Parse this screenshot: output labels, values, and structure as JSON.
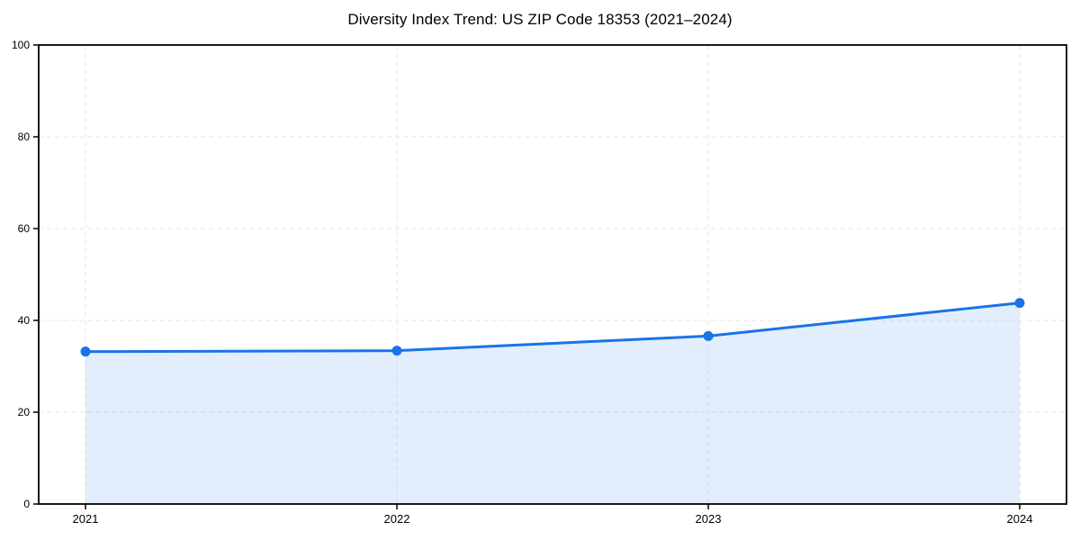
{
  "page": {
    "background": "#ffffff"
  },
  "chart_data": {
    "type": "line",
    "title": "Diversity Index Trend: US ZIP Code 18353 (2021–2024)",
    "x": [
      2021,
      2022,
      2023,
      2024
    ],
    "series": [
      {
        "name": "Diversity Index",
        "values": [
          33.2,
          33.4,
          36.6,
          43.8
        ]
      }
    ],
    "xlabel": "",
    "ylabel": "",
    "xticks": [
      2021,
      2022,
      2023,
      2024
    ],
    "yticks": [
      0,
      20,
      40,
      60,
      80,
      100
    ],
    "ylim": [
      0,
      100
    ],
    "xlim_pad_years": 0.15,
    "grid": true,
    "grid_style": "dashed",
    "legend_position": "none",
    "area_fill": true,
    "markers": true,
    "colors": {
      "line": "#1a73e8",
      "marker": "#1a73e8",
      "area_fill": "#1a73e8",
      "area_fill_opacity": 0.12,
      "grid": "#e6e6e6",
      "spine": "#000000",
      "tick": "#000000",
      "text": "#000000",
      "background": "#ffffff"
    }
  }
}
